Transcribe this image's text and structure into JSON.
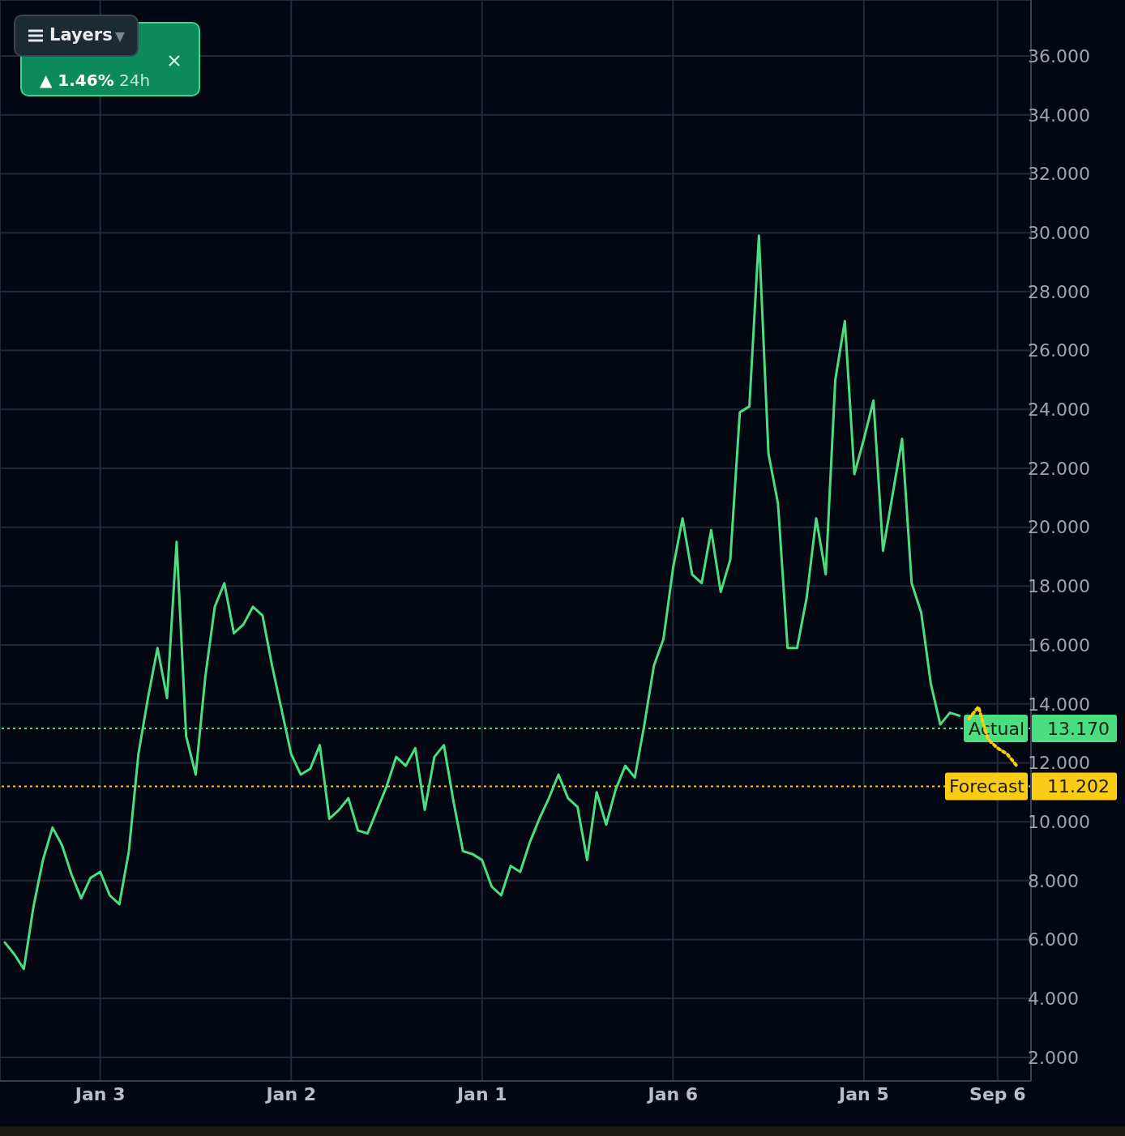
{
  "chart_data": {
    "type": "line",
    "categories": [
      null,
      null,
      null,
      null,
      null,
      null,
      null,
      null,
      null,
      null,
      "Jan 3",
      null,
      null,
      null,
      null,
      null,
      null,
      null,
      null,
      null,
      null,
      null,
      null,
      null,
      null,
      null,
      null,
      null,
      null,
      null,
      "Jan 2",
      null,
      null,
      null,
      null,
      null,
      null,
      null,
      null,
      null,
      null,
      null,
      null,
      null,
      null,
      null,
      null,
      null,
      null,
      null,
      "Jan 1",
      null,
      null,
      null,
      null,
      null,
      null,
      null,
      null,
      null,
      null,
      null,
      null,
      null,
      null,
      null,
      null,
      null,
      null,
      null,
      "Jan 6",
      null,
      null,
      null,
      null,
      null,
      null,
      null,
      null,
      null,
      null,
      null,
      null,
      null,
      null,
      null,
      null,
      null,
      null,
      null,
      "Jan 5",
      null,
      null,
      null,
      null,
      null,
      null,
      null,
      null,
      null,
      null,
      null,
      null,
      null,
      "Sep 6",
      null,
      null,
      null
    ],
    "series": [
      {
        "color": "#4ade80",
        "values": [
          5.9,
          5.5,
          5.0,
          7.1,
          8.7,
          9.8,
          9.2,
          8.2,
          7.4,
          8.1,
          8.3,
          7.5,
          7.2,
          9.0,
          12.3,
          14.2,
          15.9,
          14.2,
          19.5,
          12.9,
          11.6,
          14.9,
          17.3,
          18.1,
          16.4,
          16.7,
          17.3,
          17.0,
          15.3,
          13.8,
          12.3,
          11.6,
          11.8,
          12.6,
          10.1,
          10.4,
          10.8,
          9.7,
          9.6,
          10.4,
          11.2,
          12.2,
          11.9,
          12.5,
          10.4,
          12.2,
          12.6,
          10.7,
          9.0,
          8.9,
          8.7,
          7.8,
          7.5,
          8.5,
          8.3,
          9.3,
          10.1,
          10.8,
          11.6,
          10.8,
          10.5,
          8.7,
          11.0,
          9.9,
          11.1,
          11.9,
          11.5,
          13.3,
          15.3,
          16.2,
          18.6,
          20.3,
          18.4,
          18.1,
          19.9,
          17.8,
          18.9,
          23.9,
          24.1,
          29.9,
          22.5,
          20.8,
          15.9,
          15.9,
          17.6,
          20.3,
          18.4,
          25.0,
          27.0,
          21.8,
          23.0,
          24.3,
          19.2,
          21.1,
          23.0,
          18.1,
          17.1,
          14.7,
          13.3,
          13.7,
          13.6,
          null,
          null,
          null,
          null,
          null,
          null,
          null
        ]
      },
      {
        "color": "#facc15",
        "line_style": "dotted",
        "values": [
          null,
          null,
          null,
          null,
          null,
          null,
          null,
          null,
          null,
          null,
          null,
          null,
          null,
          null,
          null,
          null,
          null,
          null,
          null,
          null,
          null,
          null,
          null,
          null,
          null,
          null,
          null,
          null,
          null,
          null,
          null,
          null,
          null,
          null,
          null,
          null,
          null,
          null,
          null,
          null,
          null,
          null,
          null,
          null,
          null,
          null,
          null,
          null,
          null,
          null,
          null,
          null,
          null,
          null,
          null,
          null,
          null,
          null,
          null,
          null,
          null,
          null,
          null,
          null,
          null,
          null,
          null,
          null,
          null,
          null,
          null,
          null,
          null,
          null,
          null,
          null,
          null,
          null,
          null,
          null,
          null,
          null,
          null,
          null,
          null,
          null,
          null,
          null,
          null,
          null,
          null,
          null,
          null,
          null,
          null,
          null,
          null,
          null,
          null,
          null,
          null,
          13.5,
          13.9,
          12.8,
          12.5,
          12.3,
          11.9,
          null
        ]
      }
    ],
    "ylim": [
      1.2,
      37.9
    ],
    "yticks": [
      {
        "value": 2,
        "label": "2.000"
      },
      {
        "value": 4,
        "label": "4.000"
      },
      {
        "value": 6,
        "label": "6.000"
      },
      {
        "value": 8,
        "label": "8.000"
      },
      {
        "value": 10,
        "label": "10.000"
      },
      {
        "value": 12,
        "label": "12.000"
      },
      {
        "value": 14,
        "label": "14.000"
      },
      {
        "value": 16,
        "label": "16.000"
      },
      {
        "value": 18,
        "label": "18.000"
      },
      {
        "value": 20,
        "label": "20.000"
      },
      {
        "value": 22,
        "label": "22.000"
      },
      {
        "value": 24,
        "label": "24.000"
      },
      {
        "value": 26,
        "label": "26.000"
      },
      {
        "value": 28,
        "label": "28.000"
      },
      {
        "value": 30,
        "label": "30.000"
      },
      {
        "value": 32,
        "label": "32.000"
      },
      {
        "value": 34,
        "label": "34.000"
      },
      {
        "value": 36,
        "label": "36.000"
      }
    ],
    "ref_lines": [
      {
        "axis": "y",
        "value": 13.17,
        "label": "Actual",
        "color": "#4ade80",
        "line_style": "dotted"
      },
      {
        "axis": "y",
        "value": 11.202,
        "label": "Forecast",
        "color": "#facc15",
        "line_style": "dotted"
      }
    ],
    "grid": true,
    "marker": "none",
    "line_style": "solid",
    "legend": false,
    "annotations": [
      "Layers",
      "▲ 1.46%",
      "24h",
      "13.170",
      "11.202"
    ]
  }
}
